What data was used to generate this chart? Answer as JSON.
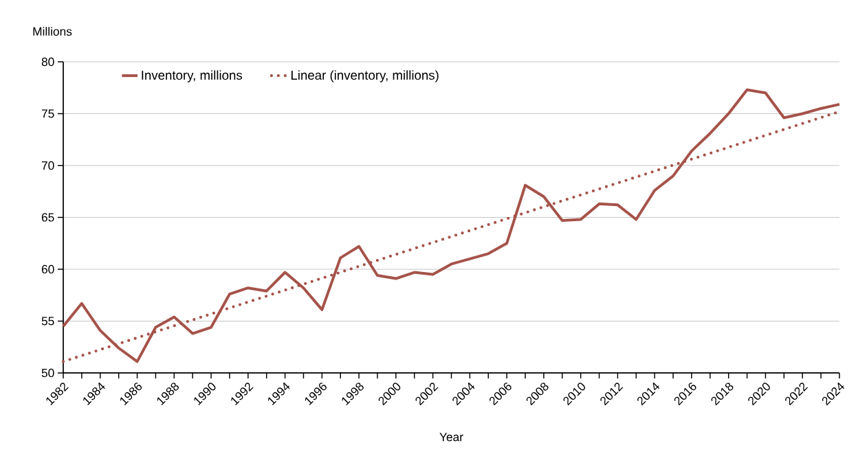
{
  "chart_data": {
    "type": "line",
    "xlabel": "Year",
    "ylabel": "Millions",
    "x": [
      1982,
      1983,
      1984,
      1985,
      1986,
      1987,
      1988,
      1989,
      1990,
      1991,
      1992,
      1993,
      1994,
      1995,
      1996,
      1997,
      1998,
      1999,
      2000,
      2001,
      2002,
      2003,
      2004,
      2005,
      2006,
      2007,
      2008,
      2009,
      2010,
      2011,
      2012,
      2013,
      2014,
      2015,
      2016,
      2017,
      2018,
      2019,
      2020,
      2021,
      2022,
      2023,
      2024
    ],
    "series": [
      {
        "name": "Inventory, millions",
        "color": "#a5534a",
        "line_style": "solid",
        "values": [
          54.5,
          56.7,
          54.1,
          52.4,
          51.1,
          54.4,
          55.4,
          53.8,
          54.4,
          57.6,
          58.2,
          57.9,
          59.7,
          58.2,
          56.1,
          61.1,
          62.2,
          59.4,
          59.1,
          59.7,
          59.5,
          60.5,
          61.0,
          61.5,
          62.5,
          68.1,
          67.0,
          64.7,
          64.8,
          66.3,
          66.2,
          64.8,
          67.6,
          69.0,
          71.4,
          73.1,
          75.0,
          77.3,
          77.0,
          74.6,
          75.0,
          75.5,
          75.9
        ]
      },
      {
        "name": "Linear (inventory, millions)",
        "color": "#a5534a",
        "line_style": "dotted",
        "x": [
          1982,
          2024
        ],
        "values": [
          51.1,
          75.2
        ]
      }
    ],
    "xlim": [
      1982,
      2024
    ],
    "xticks": [
      1982,
      {
        "value": 1983,
        "label": null
      },
      1984,
      {
        "value": 1985,
        "label": null
      },
      1986,
      {
        "value": 1987,
        "label": null
      },
      1988,
      {
        "value": 1989,
        "label": null
      },
      1990,
      {
        "value": 1991,
        "label": null
      },
      1992,
      {
        "value": 1993,
        "label": null
      },
      1994,
      {
        "value": 1995,
        "label": null
      },
      1996,
      {
        "value": 1997,
        "label": null
      },
      1998,
      {
        "value": 1999,
        "label": null
      },
      2000,
      {
        "value": 2001,
        "label": null
      },
      2002,
      {
        "value": 2003,
        "label": null
      },
      2004,
      {
        "value": 2005,
        "label": null
      },
      2006,
      {
        "value": 2007,
        "label": null
      },
      2008,
      {
        "value": 2009,
        "label": null
      },
      2010,
      {
        "value": 2011,
        "label": null
      },
      2012,
      {
        "value": 2013,
        "label": null
      },
      2014,
      {
        "value": 2015,
        "label": null
      },
      2016,
      {
        "value": 2017,
        "label": null
      },
      2018,
      {
        "value": 2019,
        "label": null
      },
      2020,
      {
        "value": 2021,
        "label": null
      },
      2022,
      {
        "value": 2023,
        "label": null
      },
      2024
    ],
    "ylim": [
      50,
      80
    ],
    "yticks": [
      50,
      55,
      60,
      65,
      70,
      75,
      80
    ],
    "grid": "y",
    "legend": "top left",
    "marker": "none"
  }
}
